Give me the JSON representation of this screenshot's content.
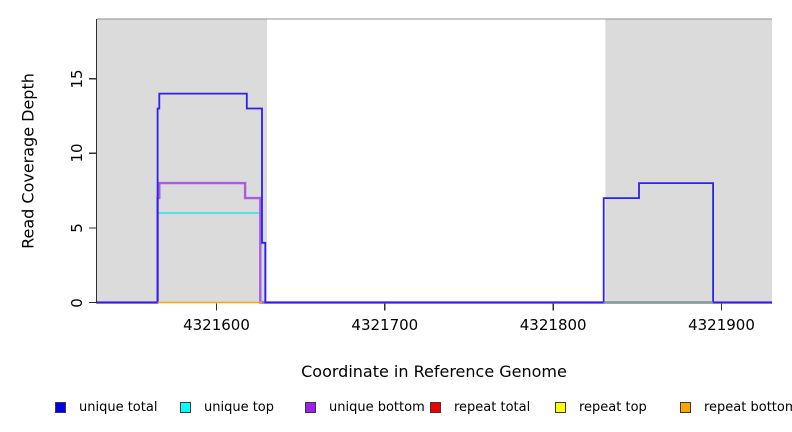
{
  "chart_data": {
    "type": "line",
    "subtype": "step-coverage-plot",
    "title": "",
    "xlabel": "Coordinate in Reference Genome",
    "ylabel": "Read Coverage Depth",
    "xlim": [
      4321529,
      4321930
    ],
    "ylim": [
      0,
      19
    ],
    "x_ticks": [
      4321600,
      4321700,
      4321800,
      4321900
    ],
    "y_ticks": [
      0,
      5,
      10,
      15
    ],
    "grid": false,
    "legend_position": "bottom",
    "background_color": "#ffffff",
    "shaded_region_color": "#dbdbdb",
    "axis_color": "#303030",
    "box_top_color": "#909090",
    "shaded_regions": [
      {
        "name": "left-repeat-region",
        "x0": 4321529,
        "x1": 4321630
      },
      {
        "name": "right-repeat-region",
        "x0": 4321831,
        "x1": 4321930
      }
    ],
    "series": [
      {
        "name": "unique total",
        "color": "#2a22ee",
        "legend_color": "#0000ee",
        "width": 1.8,
        "points": [
          [
            4321529,
            0
          ],
          [
            4321565,
            0
          ],
          [
            4321565,
            13
          ],
          [
            4321566,
            13
          ],
          [
            4321566,
            14
          ],
          [
            4321618,
            14
          ],
          [
            4321618,
            13
          ],
          [
            4321627,
            13
          ],
          [
            4321627,
            4
          ],
          [
            4321629,
            4
          ],
          [
            4321629,
            0
          ],
          [
            4321830,
            0
          ],
          [
            4321830,
            7
          ],
          [
            4321851,
            7
          ],
          [
            4321851,
            8
          ],
          [
            4321895,
            8
          ],
          [
            4321895,
            0
          ],
          [
            4321930,
            0
          ]
        ]
      },
      {
        "name": "unique top",
        "color": "#2ae2e8",
        "legend_color": "#00ffff",
        "width": 1.5,
        "points": [
          [
            4321565,
            6
          ],
          [
            4321627,
            6
          ]
        ]
      },
      {
        "name": "unique bottom",
        "color": "#a85ce6",
        "legend_color": "#a020f0",
        "width": 2.4,
        "points": [
          [
            4321529,
            0
          ],
          [
            4321565,
            0
          ],
          [
            4321565,
            7
          ],
          [
            4321566,
            7
          ],
          [
            4321566,
            8
          ],
          [
            4321617,
            8
          ],
          [
            4321617,
            7
          ],
          [
            4321626,
            7
          ],
          [
            4321626,
            0
          ],
          [
            4321930,
            0
          ]
        ]
      },
      {
        "name": "repeat total",
        "color": "#ee0000",
        "legend_color": "#ee0000",
        "width": 1.5,
        "points": []
      },
      {
        "name": "repeat top",
        "color": "#ffff00",
        "legend_color": "#ffff00",
        "width": 1.5,
        "points": []
      },
      {
        "name": "repeat bottom",
        "color": "#ffa500",
        "legend_color": "#ffa500",
        "width": 1.6,
        "points": [
          [
            4321565,
            0
          ],
          [
            4321627,
            0
          ]
        ]
      }
    ],
    "extra_lines": [
      {
        "name": "baseline-overlap-green",
        "color": "#5cbb5c",
        "width": 1.5,
        "points": [
          [
            4321830,
            0
          ],
          [
            4321895,
            0
          ]
        ]
      }
    ]
  }
}
